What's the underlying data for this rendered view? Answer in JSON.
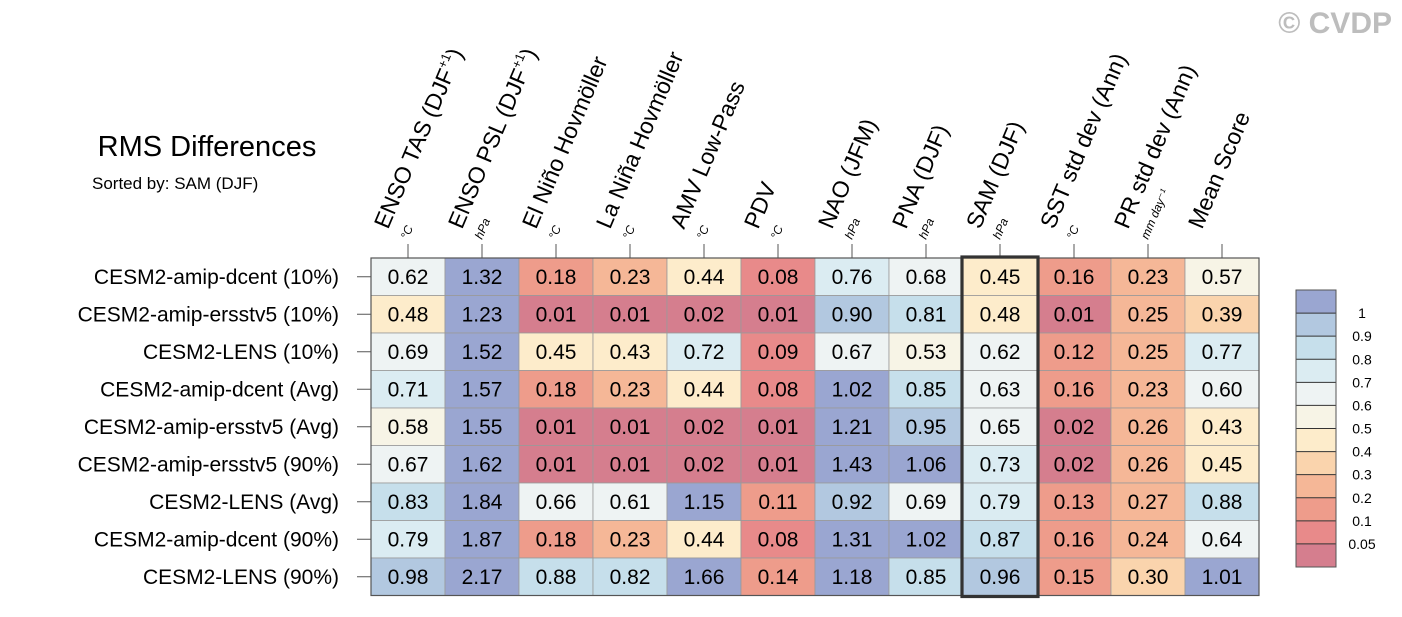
{
  "title": "RMS Differences",
  "subtitle": "Sorted by: SAM (DJF)",
  "watermark": "© CVDP",
  "chart_data": {
    "type": "heatmap",
    "columns": [
      {
        "name": "ENSO TAS (DJF",
        "sup": "+1",
        "close": ")",
        "unit": "°C"
      },
      {
        "name": "ENSO PSL (DJF",
        "sup": "+1",
        "close": ")",
        "unit": "hPa"
      },
      {
        "name": "El Niño Hovmöller",
        "sup": "",
        "close": "",
        "unit": "°C"
      },
      {
        "name": "La Niña Hovmöller",
        "sup": "",
        "close": "",
        "unit": "°C"
      },
      {
        "name": "AMV Low-Pass",
        "sup": "",
        "close": "",
        "unit": "°C"
      },
      {
        "name": "PDV",
        "sup": "",
        "close": "",
        "unit": "°C"
      },
      {
        "name": "NAO (JFM)",
        "sup": "",
        "close": "",
        "unit": "hPa"
      },
      {
        "name": "PNA (DJF)",
        "sup": "",
        "close": "",
        "unit": "hPa"
      },
      {
        "name": "SAM (DJF)",
        "sup": "",
        "close": "",
        "unit": "hPa"
      },
      {
        "name": "SST std dev (Ann)",
        "sup": "",
        "close": "",
        "unit": "°C"
      },
      {
        "name": "PR std dev (Ann)",
        "sup": "",
        "close": "",
        "unit": "mm day⁻¹"
      },
      {
        "name": "Mean Score",
        "sup": "",
        "close": "",
        "unit": ""
      }
    ],
    "rows": [
      {
        "label": "CESM2-amip-dcent (10%)",
        "values": [
          "0.62",
          "1.32",
          "0.18",
          "0.23",
          "0.44",
          "0.08",
          "0.76",
          "0.68",
          "0.45",
          "0.16",
          "0.23",
          "0.57"
        ]
      },
      {
        "label": "CESM2-amip-ersstv5 (10%)",
        "values": [
          "0.48",
          "1.23",
          "0.01",
          "0.01",
          "0.02",
          "0.01",
          "0.90",
          "0.81",
          "0.48",
          "0.01",
          "0.25",
          "0.39"
        ]
      },
      {
        "label": "CESM2-LENS (10%)",
        "values": [
          "0.69",
          "1.52",
          "0.45",
          "0.43",
          "0.72",
          "0.09",
          "0.67",
          "0.53",
          "0.62",
          "0.12",
          "0.25",
          "0.77"
        ]
      },
      {
        "label": "CESM2-amip-dcent (Avg)",
        "values": [
          "0.71",
          "1.57",
          "0.18",
          "0.23",
          "0.44",
          "0.08",
          "1.02",
          "0.85",
          "0.63",
          "0.16",
          "0.23",
          "0.60"
        ]
      },
      {
        "label": "CESM2-amip-ersstv5 (Avg)",
        "values": [
          "0.58",
          "1.55",
          "0.01",
          "0.01",
          "0.02",
          "0.01",
          "1.21",
          "0.95",
          "0.65",
          "0.02",
          "0.26",
          "0.43"
        ]
      },
      {
        "label": "CESM2-amip-ersstv5 (90%)",
        "values": [
          "0.67",
          "1.62",
          "0.01",
          "0.01",
          "0.02",
          "0.01",
          "1.43",
          "1.06",
          "0.73",
          "0.02",
          "0.26",
          "0.45"
        ]
      },
      {
        "label": "CESM2-LENS (Avg)",
        "values": [
          "0.83",
          "1.84",
          "0.66",
          "0.61",
          "1.15",
          "0.11",
          "0.92",
          "0.69",
          "0.79",
          "0.13",
          "0.27",
          "0.88"
        ]
      },
      {
        "label": "CESM2-amip-dcent (90%)",
        "values": [
          "0.79",
          "1.87",
          "0.18",
          "0.23",
          "0.44",
          "0.08",
          "1.31",
          "1.02",
          "0.87",
          "0.16",
          "0.24",
          "0.64"
        ]
      },
      {
        "label": "CESM2-LENS (90%)",
        "values": [
          "0.98",
          "2.17",
          "0.88",
          "0.82",
          "1.66",
          "0.14",
          "1.18",
          "0.85",
          "0.96",
          "0.15",
          "0.30",
          "1.01"
        ]
      }
    ],
    "highlighted_column": "SAM (DJF)",
    "colorbar": {
      "levels": [
        "1",
        "0.9",
        "0.8",
        "0.7",
        "0.6",
        "0.5",
        "0.4",
        "0.3",
        "0.2",
        "0.1",
        "0.05"
      ],
      "colors": [
        "#9aa6d1",
        "#b2c8e0",
        "#c6dfeb",
        "#dbecf2",
        "#eef3f3",
        "#f7f4e6",
        "#fdeccb",
        "#fad4ad",
        "#f5b797",
        "#ee9c8b",
        "#e88a8a",
        "#d57e8e"
      ]
    }
  }
}
